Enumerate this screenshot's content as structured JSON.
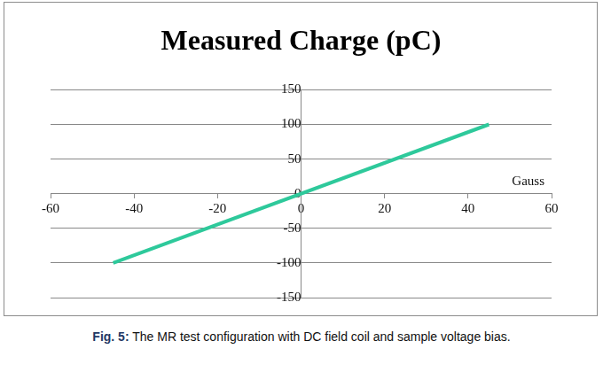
{
  "chart_data": {
    "type": "line",
    "title": "Measured Charge (pC)",
    "xlabel": "Gauss",
    "x": [
      -45,
      45
    ],
    "values": [
      -100,
      100
    ],
    "color": "#2ec99b",
    "xlim": [
      -60,
      60
    ],
    "xticks": [
      -60,
      -40,
      -20,
      0,
      20,
      40,
      60
    ],
    "ylim": [
      -150,
      150
    ],
    "yticks": [
      -150,
      -100,
      -50,
      0,
      50,
      100,
      150
    ],
    "grid": true
  },
  "caption": {
    "label": "Fig. 5:",
    "text": "The MR test configuration with DC field coil and sample voltage bias."
  }
}
